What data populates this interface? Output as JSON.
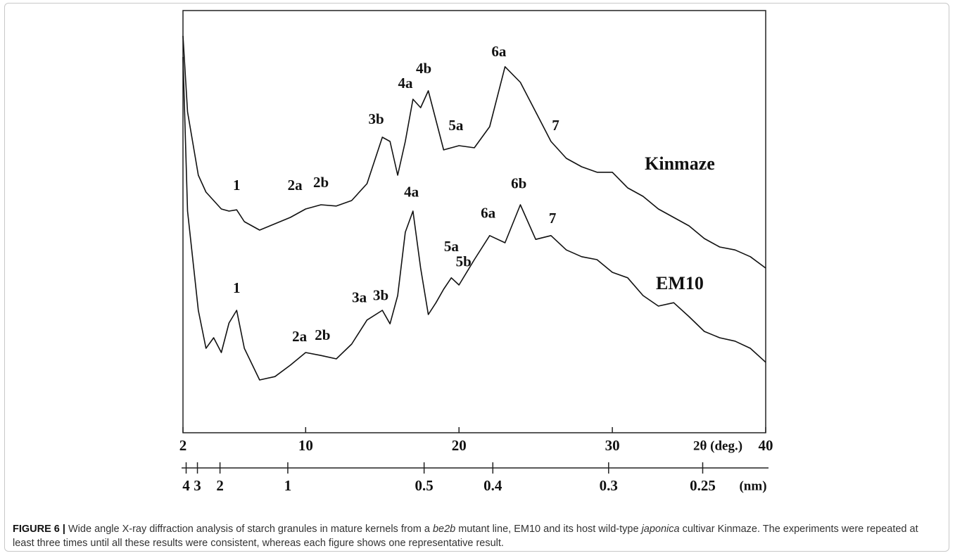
{
  "chart_data": {
    "type": "line",
    "x_label": "2θ (deg.)",
    "x2_label": "(nm)",
    "xlim": [
      2,
      40
    ],
    "xticks": [
      2,
      10,
      20,
      30,
      40
    ],
    "ylim": [
      0,
      100
    ],
    "x2ticks": [
      4,
      3,
      2,
      1,
      0.5,
      0.4,
      0.3,
      0.25
    ],
    "x": [
      2,
      2.3,
      3,
      3.5,
      4,
      4.5,
      5,
      5.5,
      6,
      7,
      8,
      9,
      10,
      11,
      12,
      13,
      14,
      15,
      15.5,
      16,
      16.5,
      17,
      17.5,
      18,
      18.5,
      19,
      19.5,
      20,
      21,
      22,
      23,
      24,
      25,
      26,
      27,
      28,
      29,
      30,
      31,
      32,
      33,
      34,
      35,
      36,
      37,
      38,
      39,
      40
    ],
    "series": [
      {
        "name": "Kinmaze",
        "color": "#111111",
        "values": [
          94,
          76,
          61,
          57,
          55,
          53,
          52.5,
          52.8,
          50,
          48,
          49.5,
          51,
          53,
          54,
          53.7,
          55,
          59,
          70,
          69,
          61,
          69,
          79,
          77,
          81,
          74,
          67,
          67.5,
          68,
          67.5,
          72.5,
          86.7,
          83,
          76,
          69,
          65,
          63,
          61.7,
          61.7,
          58,
          56,
          53,
          51,
          49,
          46,
          44,
          43.3,
          41.7,
          39
        ]
      },
      {
        "name": "EM10",
        "color": "#111111",
        "values": [
          89,
          52.5,
          29,
          20,
          22.5,
          19,
          26,
          29,
          20,
          12.5,
          13.3,
          16,
          19,
          18.3,
          17.5,
          21,
          26.7,
          29,
          25.8,
          32.5,
          47.5,
          52.5,
          39,
          28,
          30.8,
          34,
          36.7,
          35,
          41,
          46.7,
          45,
          54,
          45.8,
          46.7,
          43.3,
          41.7,
          41,
          38,
          36.7,
          32.5,
          30,
          30.8,
          27.5,
          24,
          22.5,
          21.7,
          20,
          16.7
        ]
      }
    ],
    "annotations": [
      {
        "text": "1",
        "x": 5.5,
        "y": 58.3
      },
      {
        "text": "2a",
        "x": 9.3,
        "y": 58.3
      },
      {
        "text": "2b",
        "x": 11,
        "y": 59
      },
      {
        "text": "3b",
        "x": 14.6,
        "y": 74
      },
      {
        "text": "4a",
        "x": 16.5,
        "y": 82.5
      },
      {
        "text": "4b",
        "x": 17.7,
        "y": 86
      },
      {
        "text": "5a",
        "x": 19.8,
        "y": 72.5
      },
      {
        "text": "6a",
        "x": 22.6,
        "y": 90
      },
      {
        "text": "7",
        "x": 26.3,
        "y": 72.5
      },
      {
        "text": "Kinmaze",
        "x": 34.4,
        "y": 63.3
      },
      {
        "text": "1",
        "x": 5.5,
        "y": 34
      },
      {
        "text": "2a",
        "x": 9.6,
        "y": 22.5
      },
      {
        "text": "2b",
        "x": 11.1,
        "y": 22.8
      },
      {
        "text": "3a",
        "x": 13.5,
        "y": 31.7
      },
      {
        "text": "3b",
        "x": 14.9,
        "y": 32.2
      },
      {
        "text": "4a",
        "x": 16.9,
        "y": 56.7
      },
      {
        "text": "5a",
        "x": 19.5,
        "y": 43.8
      },
      {
        "text": "5b",
        "x": 20.3,
        "y": 40.2
      },
      {
        "text": "6a",
        "x": 21.9,
        "y": 51.7
      },
      {
        "text": "6b",
        "x": 23.9,
        "y": 58.7
      },
      {
        "text": "7",
        "x": 26.1,
        "y": 50.5
      },
      {
        "text": "EM10",
        "x": 34.4,
        "y": 35
      }
    ]
  },
  "caption": {
    "label": "FIGURE 6 |",
    "parts": [
      "Wide angle X-ray diffraction analysis of starch granules in mature kernels from a ",
      "be2b",
      " mutant line, EM10 and its host wild-type ",
      "japonica",
      " cultivar Kinmaze. The experiments were repeated at least three times until all these results were consistent, whereas each figure shows one representative result."
    ]
  }
}
